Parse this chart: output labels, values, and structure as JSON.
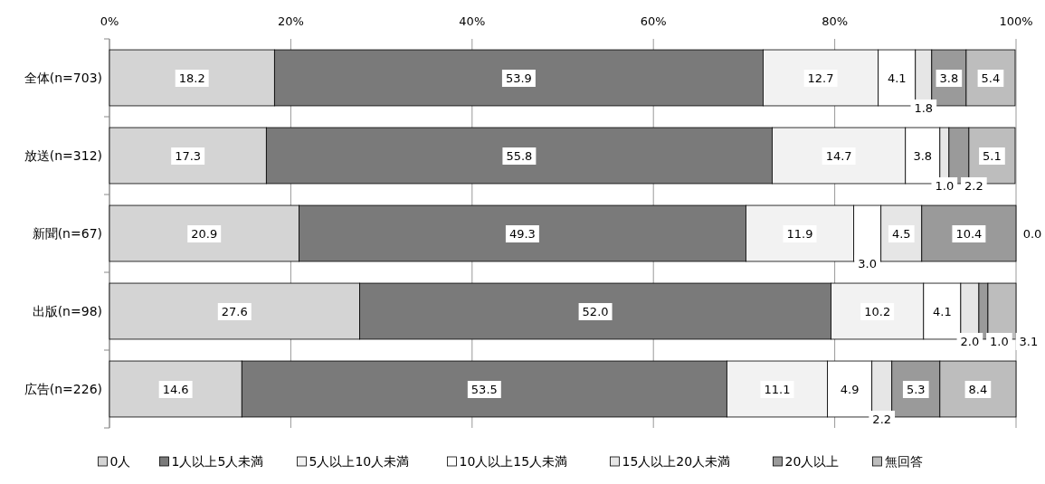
{
  "chart_data": {
    "type": "bar",
    "orientation": "horizontal",
    "stacked": true,
    "categories": [
      "全体(n=703)",
      "放送(n=312)",
      "新聞(n=67)",
      "出版(n=98)",
      "広告(n=226)"
    ],
    "series": [
      {
        "name": "0人",
        "color": "#d4d4d4",
        "values": [
          18.2,
          17.3,
          20.9,
          27.6,
          14.6
        ],
        "value_labels": [
          "18.2",
          "17.3",
          "20.9",
          "27.6",
          "14.6"
        ]
      },
      {
        "name": "1人以上5人未満",
        "color": "#7a7a7a",
        "values": [
          53.9,
          55.8,
          49.3,
          52.0,
          53.5
        ],
        "value_labels": [
          "53.9",
          "55.8",
          "49.3",
          "52.0",
          "53.5"
        ]
      },
      {
        "name": "5人以上10人未満",
        "color": "#f2f2f2",
        "values": [
          12.7,
          14.7,
          11.9,
          10.2,
          11.1
        ],
        "value_labels": [
          "12.7",
          "14.7",
          "11.9",
          "10.2",
          "11.1"
        ]
      },
      {
        "name": "10人以上15人未満",
        "color": "#ffffff",
        "values": [
          4.1,
          3.8,
          3.0,
          4.1,
          4.9
        ],
        "value_labels": [
          "4.1",
          "3.8",
          "3.0",
          "4.1",
          "4.9"
        ]
      },
      {
        "name": "15人以上20人未満",
        "color": "#e6e6e6",
        "values": [
          1.8,
          1.0,
          4.5,
          2.0,
          2.2
        ],
        "value_labels": [
          "1.8",
          "1.0",
          "4.5",
          "2.0",
          "2.2"
        ]
      },
      {
        "name": "20人以上",
        "color": "#9a9a9a",
        "values": [
          3.8,
          2.2,
          10.4,
          1.0,
          5.3
        ],
        "value_labels": [
          "3.8",
          "2.2",
          "10.4",
          "1.0",
          "5.3"
        ]
      },
      {
        "name": "無回答",
        "color": "#bdbdbd",
        "values": [
          5.4,
          5.1,
          0.0,
          3.1,
          8.4
        ],
        "value_labels": [
          "5.4",
          "5.1",
          "0.0",
          "3.1",
          "8.4"
        ]
      }
    ],
    "xlim": [
      0,
      100
    ],
    "xticks": [
      {
        "value": 0,
        "label": "0%"
      },
      {
        "value": 20,
        "label": "20%"
      },
      {
        "value": 40,
        "label": "40%"
      },
      {
        "value": 60,
        "label": "60%"
      },
      {
        "value": 80,
        "label": "80%"
      },
      {
        "value": 100,
        "label": "100%"
      }
    ],
    "grid": "x",
    "legend": "bottom"
  }
}
